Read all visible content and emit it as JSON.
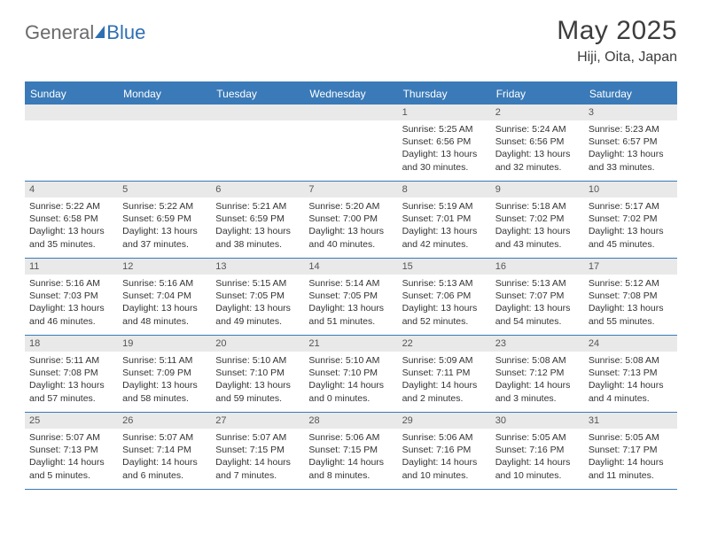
{
  "logo": {
    "text_general": "General",
    "text_blue": "Blue"
  },
  "title": "May 2025",
  "location": "Hiji, Oita, Japan",
  "day_headers": [
    "Sunday",
    "Monday",
    "Tuesday",
    "Wednesday",
    "Thursday",
    "Friday",
    "Saturday"
  ],
  "colors": {
    "header_bg": "#3a7ab8",
    "header_text": "#ffffff",
    "daynum_bg": "#e9e9e9",
    "border": "#3a7ab8",
    "title_text": "#3d3d3d",
    "logo_gray": "#6b6b6b",
    "logo_blue": "#2f6fb3"
  },
  "weeks": [
    [
      {
        "num": "",
        "sunrise": "",
        "sunset": "",
        "daylight": ""
      },
      {
        "num": "",
        "sunrise": "",
        "sunset": "",
        "daylight": ""
      },
      {
        "num": "",
        "sunrise": "",
        "sunset": "",
        "daylight": ""
      },
      {
        "num": "",
        "sunrise": "",
        "sunset": "",
        "daylight": ""
      },
      {
        "num": "1",
        "sunrise": "Sunrise: 5:25 AM",
        "sunset": "Sunset: 6:56 PM",
        "daylight": "Daylight: 13 hours and 30 minutes."
      },
      {
        "num": "2",
        "sunrise": "Sunrise: 5:24 AM",
        "sunset": "Sunset: 6:56 PM",
        "daylight": "Daylight: 13 hours and 32 minutes."
      },
      {
        "num": "3",
        "sunrise": "Sunrise: 5:23 AM",
        "sunset": "Sunset: 6:57 PM",
        "daylight": "Daylight: 13 hours and 33 minutes."
      }
    ],
    [
      {
        "num": "4",
        "sunrise": "Sunrise: 5:22 AM",
        "sunset": "Sunset: 6:58 PM",
        "daylight": "Daylight: 13 hours and 35 minutes."
      },
      {
        "num": "5",
        "sunrise": "Sunrise: 5:22 AM",
        "sunset": "Sunset: 6:59 PM",
        "daylight": "Daylight: 13 hours and 37 minutes."
      },
      {
        "num": "6",
        "sunrise": "Sunrise: 5:21 AM",
        "sunset": "Sunset: 6:59 PM",
        "daylight": "Daylight: 13 hours and 38 minutes."
      },
      {
        "num": "7",
        "sunrise": "Sunrise: 5:20 AM",
        "sunset": "Sunset: 7:00 PM",
        "daylight": "Daylight: 13 hours and 40 minutes."
      },
      {
        "num": "8",
        "sunrise": "Sunrise: 5:19 AM",
        "sunset": "Sunset: 7:01 PM",
        "daylight": "Daylight: 13 hours and 42 minutes."
      },
      {
        "num": "9",
        "sunrise": "Sunrise: 5:18 AM",
        "sunset": "Sunset: 7:02 PM",
        "daylight": "Daylight: 13 hours and 43 minutes."
      },
      {
        "num": "10",
        "sunrise": "Sunrise: 5:17 AM",
        "sunset": "Sunset: 7:02 PM",
        "daylight": "Daylight: 13 hours and 45 minutes."
      }
    ],
    [
      {
        "num": "11",
        "sunrise": "Sunrise: 5:16 AM",
        "sunset": "Sunset: 7:03 PM",
        "daylight": "Daylight: 13 hours and 46 minutes."
      },
      {
        "num": "12",
        "sunrise": "Sunrise: 5:16 AM",
        "sunset": "Sunset: 7:04 PM",
        "daylight": "Daylight: 13 hours and 48 minutes."
      },
      {
        "num": "13",
        "sunrise": "Sunrise: 5:15 AM",
        "sunset": "Sunset: 7:05 PM",
        "daylight": "Daylight: 13 hours and 49 minutes."
      },
      {
        "num": "14",
        "sunrise": "Sunrise: 5:14 AM",
        "sunset": "Sunset: 7:05 PM",
        "daylight": "Daylight: 13 hours and 51 minutes."
      },
      {
        "num": "15",
        "sunrise": "Sunrise: 5:13 AM",
        "sunset": "Sunset: 7:06 PM",
        "daylight": "Daylight: 13 hours and 52 minutes."
      },
      {
        "num": "16",
        "sunrise": "Sunrise: 5:13 AM",
        "sunset": "Sunset: 7:07 PM",
        "daylight": "Daylight: 13 hours and 54 minutes."
      },
      {
        "num": "17",
        "sunrise": "Sunrise: 5:12 AM",
        "sunset": "Sunset: 7:08 PM",
        "daylight": "Daylight: 13 hours and 55 minutes."
      }
    ],
    [
      {
        "num": "18",
        "sunrise": "Sunrise: 5:11 AM",
        "sunset": "Sunset: 7:08 PM",
        "daylight": "Daylight: 13 hours and 57 minutes."
      },
      {
        "num": "19",
        "sunrise": "Sunrise: 5:11 AM",
        "sunset": "Sunset: 7:09 PM",
        "daylight": "Daylight: 13 hours and 58 minutes."
      },
      {
        "num": "20",
        "sunrise": "Sunrise: 5:10 AM",
        "sunset": "Sunset: 7:10 PM",
        "daylight": "Daylight: 13 hours and 59 minutes."
      },
      {
        "num": "21",
        "sunrise": "Sunrise: 5:10 AM",
        "sunset": "Sunset: 7:10 PM",
        "daylight": "Daylight: 14 hours and 0 minutes."
      },
      {
        "num": "22",
        "sunrise": "Sunrise: 5:09 AM",
        "sunset": "Sunset: 7:11 PM",
        "daylight": "Daylight: 14 hours and 2 minutes."
      },
      {
        "num": "23",
        "sunrise": "Sunrise: 5:08 AM",
        "sunset": "Sunset: 7:12 PM",
        "daylight": "Daylight: 14 hours and 3 minutes."
      },
      {
        "num": "24",
        "sunrise": "Sunrise: 5:08 AM",
        "sunset": "Sunset: 7:13 PM",
        "daylight": "Daylight: 14 hours and 4 minutes."
      }
    ],
    [
      {
        "num": "25",
        "sunrise": "Sunrise: 5:07 AM",
        "sunset": "Sunset: 7:13 PM",
        "daylight": "Daylight: 14 hours and 5 minutes."
      },
      {
        "num": "26",
        "sunrise": "Sunrise: 5:07 AM",
        "sunset": "Sunset: 7:14 PM",
        "daylight": "Daylight: 14 hours and 6 minutes."
      },
      {
        "num": "27",
        "sunrise": "Sunrise: 5:07 AM",
        "sunset": "Sunset: 7:15 PM",
        "daylight": "Daylight: 14 hours and 7 minutes."
      },
      {
        "num": "28",
        "sunrise": "Sunrise: 5:06 AM",
        "sunset": "Sunset: 7:15 PM",
        "daylight": "Daylight: 14 hours and 8 minutes."
      },
      {
        "num": "29",
        "sunrise": "Sunrise: 5:06 AM",
        "sunset": "Sunset: 7:16 PM",
        "daylight": "Daylight: 14 hours and 10 minutes."
      },
      {
        "num": "30",
        "sunrise": "Sunrise: 5:05 AM",
        "sunset": "Sunset: 7:16 PM",
        "daylight": "Daylight: 14 hours and 10 minutes."
      },
      {
        "num": "31",
        "sunrise": "Sunrise: 5:05 AM",
        "sunset": "Sunset: 7:17 PM",
        "daylight": "Daylight: 14 hours and 11 minutes."
      }
    ]
  ]
}
